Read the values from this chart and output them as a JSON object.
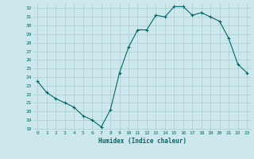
{
  "x": [
    0,
    1,
    2,
    3,
    4,
    5,
    6,
    7,
    8,
    9,
    10,
    11,
    12,
    13,
    14,
    15,
    16,
    17,
    18,
    19,
    20,
    21,
    22,
    23
  ],
  "y": [
    23.5,
    22.2,
    21.5,
    21.0,
    20.5,
    19.5,
    19.0,
    18.2,
    20.2,
    24.5,
    27.5,
    29.5,
    29.5,
    31.2,
    31.0,
    32.2,
    32.2,
    31.2,
    31.5,
    31.0,
    30.5,
    28.5,
    25.5,
    24.5
  ],
  "xlabel": "Humidex (Indice chaleur)",
  "bg_color": "#cce8ec",
  "line_color": "#006868",
  "grid_color": "#aacccc",
  "text_color": "#006868",
  "ylim": [
    17.8,
    32.6
  ],
  "yticks": [
    18,
    19,
    20,
    21,
    22,
    23,
    24,
    25,
    26,
    27,
    28,
    29,
    30,
    31,
    32
  ],
  "xlim": [
    -0.5,
    23.5
  ],
  "xticks": [
    0,
    1,
    2,
    3,
    4,
    5,
    6,
    7,
    8,
    9,
    10,
    11,
    12,
    13,
    14,
    15,
    16,
    17,
    18,
    19,
    20,
    21,
    22,
    23
  ]
}
